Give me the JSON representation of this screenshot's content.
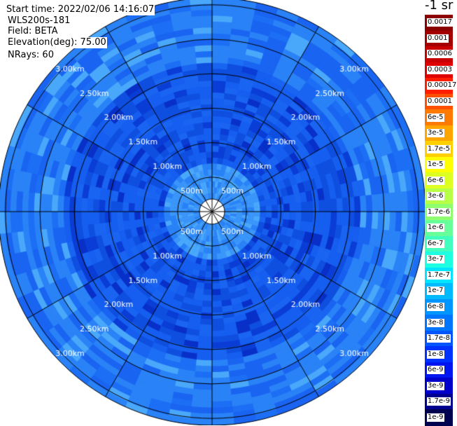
{
  "header": {
    "start_time": "Start time: 2022/02/06 14:16:07",
    "instrument": "WLS200s-181",
    "field": "Field: BETA",
    "elevation": "Elevation(deg): 75.00",
    "nrays": "NRays: 60"
  },
  "colorbar": {
    "unit_label": "-1 sr",
    "ticks": [
      "0.0017",
      "0.001",
      "0.0006",
      "0.0003",
      "0.00017",
      "0.0001",
      "6e-5",
      "3e-5",
      "1.7e-5",
      "1e-5",
      "6e-6",
      "3e-6",
      "1.7e-6",
      "1e-6",
      "6e-7",
      "3e-7",
      "1.7e-7",
      "1e-7",
      "6e-8",
      "3e-8",
      "1.7e-8",
      "1e-8",
      "6e-9",
      "3e-9",
      "1.7e-9",
      "1e-9"
    ],
    "colors": [
      "#8b0000",
      "#a50000",
      "#c80000",
      "#e10000",
      "#ff1e00",
      "#ff5000",
      "#ff7a00",
      "#ffa500",
      "#ffcf00",
      "#ffff00",
      "#ddff22",
      "#b8ff47",
      "#8fff70",
      "#66ff99",
      "#40ffbf",
      "#1effe1",
      "#00e4ff",
      "#00baff",
      "#0096ff",
      "#0076ff",
      "#0055ff",
      "#0032ff",
      "#0015f0",
      "#0000cc",
      "#000090",
      "#000050"
    ]
  },
  "chart_data": {
    "type": "heatmap",
    "projection": "polar PPI",
    "n_rays": 60,
    "rings": [
      "500m",
      "1.00km",
      "1.50km",
      "2.00km",
      "2.50km",
      "3.00km"
    ],
    "ring_values_m": [
      500,
      1000,
      1500,
      2000,
      2500,
      3000
    ],
    "spokes_deg": [
      0,
      30,
      60,
      90,
      120,
      150,
      180,
      210,
      240,
      270,
      300,
      330
    ],
    "field": "BETA",
    "dominant_value": "1e-8 to 3e-8",
    "background_palette": [
      "#1a64f2",
      "#155ef0",
      "#1c6ff5",
      "#0f4fe0",
      "#2a82f7",
      "#0a3cd6",
      "#3b96fa",
      "#1155ea",
      "#0830c8",
      "#4aa8fb"
    ]
  }
}
